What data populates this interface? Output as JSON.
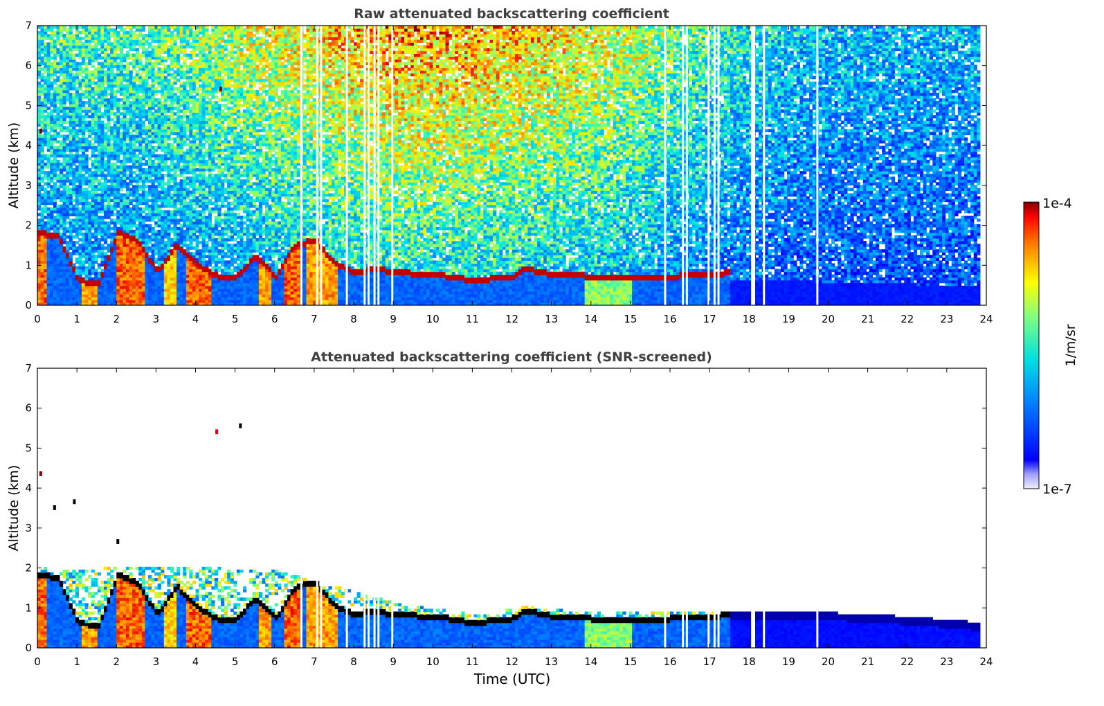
{
  "chart_data": [
    {
      "type": "heatmap",
      "title": "Raw attenuated backscattering coefficient",
      "xlabel": "",
      "ylabel": "Altitude (km)",
      "xlim": [
        0,
        24
      ],
      "ylim": [
        0,
        7
      ],
      "xticks": [
        "0",
        "1",
        "2",
        "3",
        "4",
        "5",
        "6",
        "7",
        "8",
        "9",
        "10",
        "11",
        "12",
        "13",
        "14",
        "15",
        "16",
        "17",
        "18",
        "19",
        "20",
        "21",
        "22",
        "23",
        "24"
      ],
      "yticks": [
        "0",
        "1",
        "2",
        "3",
        "4",
        "5",
        "6",
        "7"
      ],
      "data_end_time": 23.8,
      "gap_times": [
        6.65,
        7.05,
        7.15,
        7.8,
        8.25,
        8.35,
        8.5,
        8.6,
        8.95,
        15.85,
        16.3,
        16.4,
        16.95,
        17.1,
        17.2,
        18.05,
        18.1,
        18.35,
        19.7
      ],
      "noise_background": [
        {
          "t": 0,
          "v": 0.55
        },
        {
          "t": 3,
          "v": 0.58
        },
        {
          "t": 5,
          "v": 0.68
        },
        {
          "t": 7,
          "v": 0.76
        },
        {
          "t": 9,
          "v": 0.84
        },
        {
          "t": 11,
          "v": 0.82
        },
        {
          "t": 13,
          "v": 0.78
        },
        {
          "t": 15,
          "v": 0.7
        },
        {
          "t": 17,
          "v": 0.55
        },
        {
          "t": 19,
          "v": 0.45
        },
        {
          "t": 21,
          "v": 0.42
        },
        {
          "t": 23.8,
          "v": 0.42
        }
      ],
      "boundary_layer_top_km": [
        {
          "t": 0,
          "km": 1.8
        },
        {
          "t": 0.5,
          "km": 1.7
        },
        {
          "t": 1,
          "km": 0.6
        },
        {
          "t": 1.5,
          "km": 0.5
        },
        {
          "t": 2,
          "km": 1.8
        },
        {
          "t": 2.5,
          "km": 1.6
        },
        {
          "t": 3,
          "km": 0.8
        },
        {
          "t": 3.5,
          "km": 1.5
        },
        {
          "t": 4,
          "km": 1.0
        },
        {
          "t": 4.5,
          "km": 0.7
        },
        {
          "t": 5,
          "km": 0.7
        },
        {
          "t": 5.5,
          "km": 1.2
        },
        {
          "t": 6,
          "km": 0.7
        },
        {
          "t": 6.5,
          "km": 1.5
        },
        {
          "t": 7,
          "km": 1.6
        },
        {
          "t": 7.5,
          "km": 1.0
        },
        {
          "t": 8,
          "km": 0.8
        },
        {
          "t": 8.5,
          "km": 0.9
        },
        {
          "t": 9,
          "km": 0.8
        },
        {
          "t": 10,
          "km": 0.75
        },
        {
          "t": 11,
          "km": 0.6
        },
        {
          "t": 12,
          "km": 0.7
        },
        {
          "t": 12.3,
          "km": 0.9
        },
        {
          "t": 13,
          "km": 0.75
        },
        {
          "t": 14,
          "km": 0.7
        },
        {
          "t": 15,
          "km": 0.65
        },
        {
          "t": 16,
          "km": 0.7
        },
        {
          "t": 17,
          "km": 0.75
        },
        {
          "t": 17.5,
          "km": 0.8
        }
      ],
      "aerosol_plumes": [
        {
          "t0": 0.0,
          "t1": 0.2,
          "top": 1.9,
          "v": 0.95
        },
        {
          "t0": 1.1,
          "t1": 1.5,
          "top": 1.6,
          "v": 0.9
        },
        {
          "t0": 2.0,
          "t1": 2.7,
          "top": 2.0,
          "v": 0.95
        },
        {
          "t0": 3.2,
          "t1": 3.5,
          "top": 1.8,
          "v": 0.85
        },
        {
          "t0": 3.7,
          "t1": 4.4,
          "top": 1.8,
          "v": 0.95
        },
        {
          "t0": 5.6,
          "t1": 5.9,
          "top": 1.6,
          "v": 0.9
        },
        {
          "t0": 6.2,
          "t1": 6.6,
          "top": 1.8,
          "v": 0.95
        },
        {
          "t0": 6.8,
          "t1": 7.6,
          "top": 1.7,
          "v": 0.9
        },
        {
          "t0": 13.8,
          "t1": 15.0,
          "top": 0.7,
          "v": 0.7
        }
      ],
      "isolated_features": [
        {
          "t": 0.05,
          "km": 4.3,
          "v": 1.0
        },
        {
          "t": 4.6,
          "km": 5.35,
          "v": 1.0
        }
      ]
    },
    {
      "type": "heatmap",
      "title": "Attenuated backscattering coefficient (SNR-screened)",
      "xlabel": "Time (UTC)",
      "ylabel": "Altitude (km)",
      "xlim": [
        0,
        24
      ],
      "ylim": [
        0,
        7
      ],
      "xticks": [
        "0",
        "1",
        "2",
        "3",
        "4",
        "5",
        "6",
        "7",
        "8",
        "9",
        "10",
        "11",
        "12",
        "13",
        "14",
        "15",
        "16",
        "17",
        "18",
        "19",
        "20",
        "21",
        "22",
        "23",
        "24"
      ],
      "yticks": [
        "0",
        "1",
        "2",
        "3",
        "4",
        "5",
        "6",
        "7"
      ],
      "screened_top_km": [
        {
          "t": 0,
          "km": 2.0
        },
        {
          "t": 1,
          "km": 1.9
        },
        {
          "t": 2,
          "km": 2.0
        },
        {
          "t": 4,
          "km": 2.0
        },
        {
          "t": 6,
          "km": 1.9
        },
        {
          "t": 7.5,
          "km": 1.5
        },
        {
          "t": 9,
          "km": 1.1
        },
        {
          "t": 11,
          "km": 0.8
        },
        {
          "t": 12.3,
          "km": 1.0
        },
        {
          "t": 14,
          "km": 0.85
        },
        {
          "t": 16,
          "km": 0.85
        },
        {
          "t": 18,
          "km": 0.9
        },
        {
          "t": 20,
          "km": 0.85
        },
        {
          "t": 22,
          "km": 0.75
        },
        {
          "t": 23.8,
          "km": 0.6
        }
      ],
      "isolated_features": [
        {
          "t": 0.05,
          "km": 4.3,
          "v": 1.0
        },
        {
          "t": 0.4,
          "km": 3.45,
          "v": 0.1
        },
        {
          "t": 0.9,
          "km": 3.6,
          "v": 0.1
        },
        {
          "t": 4.5,
          "km": 5.35,
          "v": 0.95
        },
        {
          "t": 5.1,
          "km": 5.5,
          "v": 0.1
        },
        {
          "t": 2.0,
          "km": 2.6,
          "v": 0.1
        }
      ]
    }
  ],
  "colorbar": {
    "label": "1/m/sr",
    "max_label": "1e-4",
    "min_label": "1e-7",
    "colormap": "jet"
  }
}
